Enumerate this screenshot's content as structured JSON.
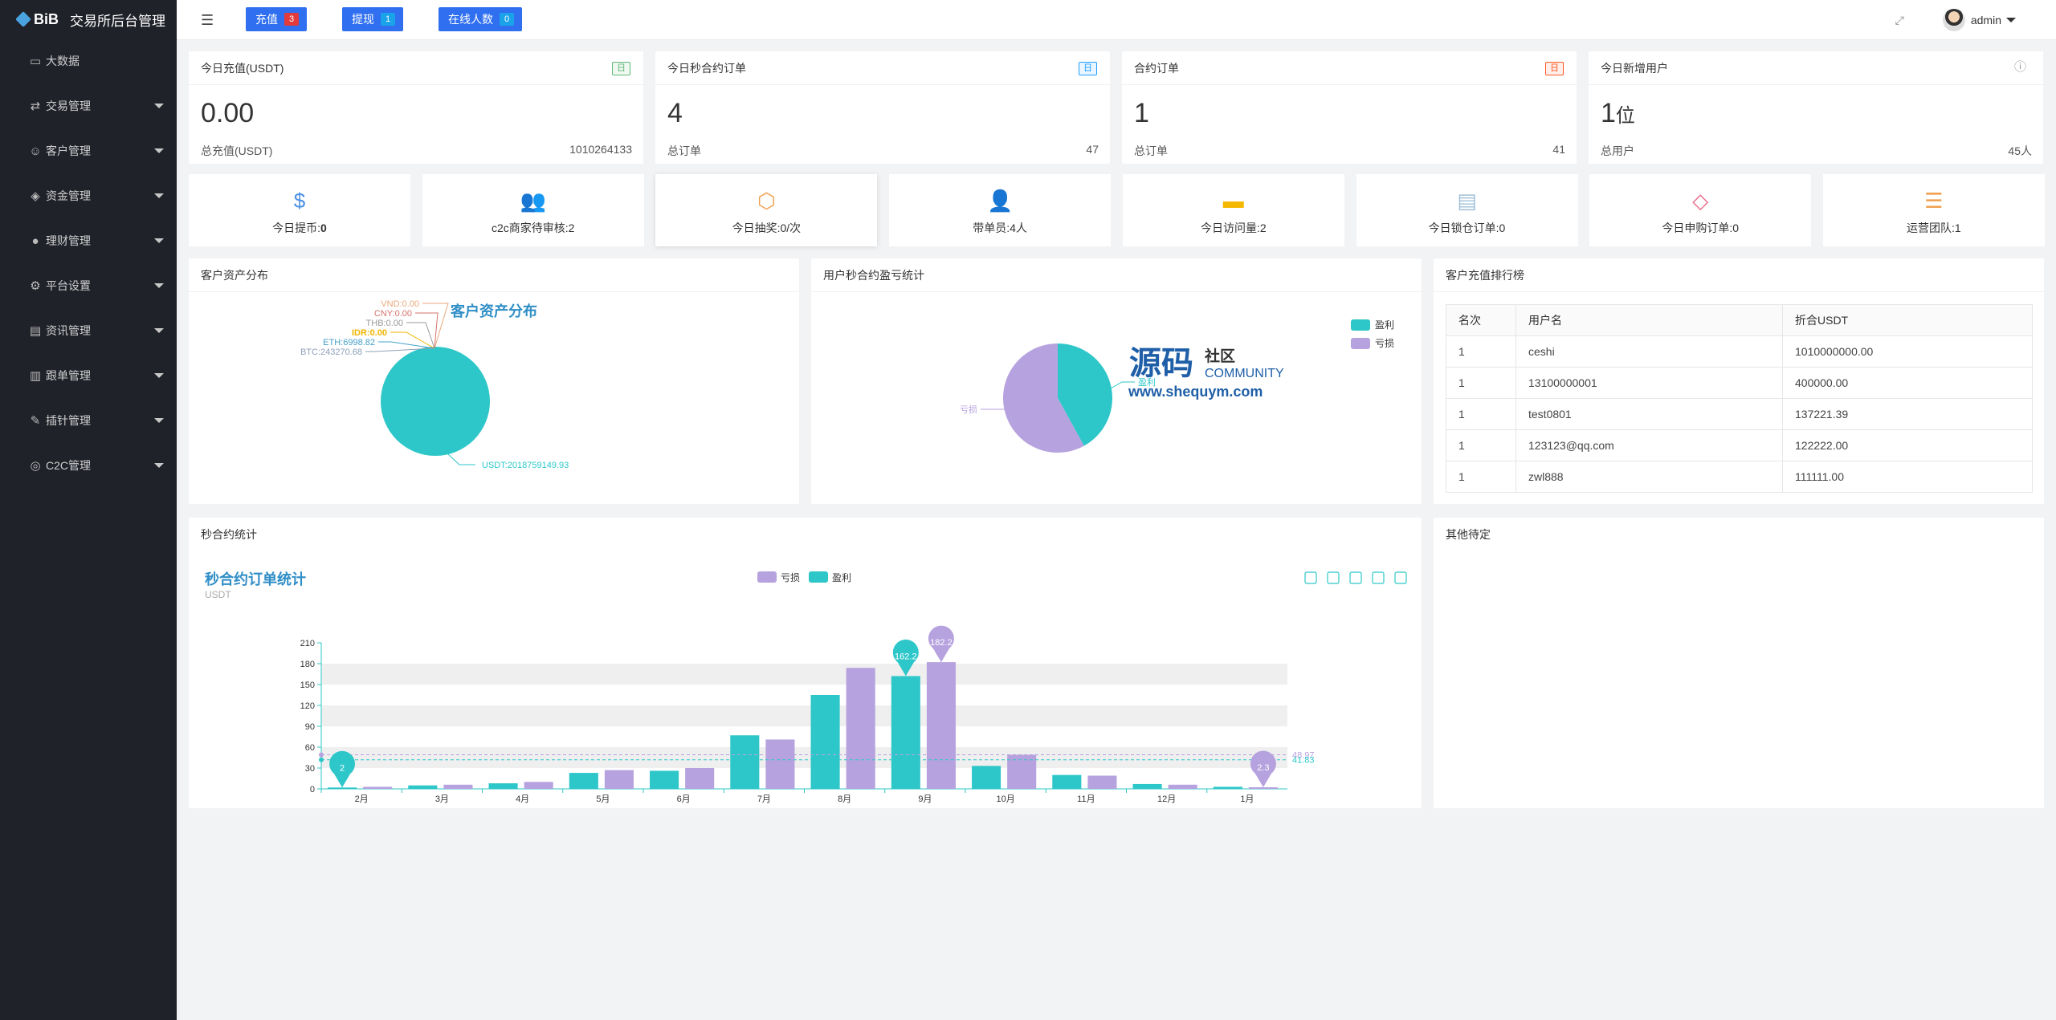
{
  "app": {
    "logo": "BiB",
    "title": "交易所后台管理"
  },
  "sidebar": {
    "items": [
      {
        "label": "大数据",
        "icon": "monitor-icon",
        "glyph": "▭",
        "expandable": false
      },
      {
        "label": "交易管理",
        "icon": "exchange-icon",
        "glyph": "⇄",
        "expandable": true
      },
      {
        "label": "客户管理",
        "icon": "users-icon",
        "glyph": "☺",
        "expandable": true
      },
      {
        "label": "资金管理",
        "icon": "wallet-icon",
        "glyph": "◈",
        "expandable": true
      },
      {
        "label": "理财管理",
        "icon": "piggy-bank-icon",
        "glyph": "●",
        "expandable": true
      },
      {
        "label": "平台设置",
        "icon": "gear-icon",
        "glyph": "⚙",
        "expandable": true
      },
      {
        "label": "资讯管理",
        "icon": "news-icon",
        "glyph": "▤",
        "expandable": true
      },
      {
        "label": "跟单管理",
        "icon": "document-icon",
        "glyph": "▥",
        "expandable": true
      },
      {
        "label": "插针管理",
        "icon": "wrench-icon",
        "glyph": "✎",
        "expandable": true
      },
      {
        "label": "C2C管理",
        "icon": "c2c-icon",
        "glyph": "◎",
        "expandable": true
      }
    ]
  },
  "topbar": {
    "buttons": [
      {
        "label": "充值",
        "badge": "3",
        "badge_color": "#e33b3b"
      },
      {
        "label": "提现",
        "badge": "1",
        "badge_color": "#1aa3e8"
      },
      {
        "label": "在线人数",
        "badge": "0",
        "badge_color": "#1aa3e8"
      }
    ],
    "user": "admin"
  },
  "stats": [
    {
      "title": "今日充值(USDT)",
      "tag": "日",
      "tag_color": "#5fb878",
      "value": "0.00",
      "unit": "",
      "foot_label": "总充值(USDT)",
      "foot_value": "1010264133"
    },
    {
      "title": "今日秒合约订单",
      "tag": "日",
      "tag_color": "#1e9fff",
      "value": "4",
      "unit": "",
      "foot_label": "总订单",
      "foot_value": "47"
    },
    {
      "title": "合约订单",
      "tag": "日",
      "tag_color": "#ff5722",
      "value": "1",
      "unit": "",
      "foot_label": "总订单",
      "foot_value": "41"
    },
    {
      "title": "今日新增用户",
      "tag": "ⓘ",
      "tag_color": "#999999",
      "value": "1",
      "unit": "位",
      "foot_label": "总用户",
      "foot_value": "45人"
    }
  ],
  "shortcuts": [
    {
      "label": "今日提币:",
      "value": "0",
      "icon": "dollar-icon",
      "glyph": "$",
      "color": "#4a90e2"
    },
    {
      "label": "c2c商家待审核:2",
      "value": "",
      "icon": "users-icon",
      "glyph": "👥",
      "color": "#5fb878"
    },
    {
      "label": "今日抽奖:0/次",
      "value": "",
      "icon": "box-icon",
      "glyph": "⬡",
      "color": "#f0a050"
    },
    {
      "label": "带单员:4人",
      "value": "",
      "icon": "user-icon",
      "glyph": "👤",
      "color": "#9b59b6"
    },
    {
      "label": "今日访问量:2",
      "value": "",
      "icon": "card-icon",
      "glyph": "▬",
      "color": "#f5b800"
    },
    {
      "label": "今日锁仓订单:0",
      "value": "",
      "icon": "file-icon",
      "glyph": "▤",
      "color": "#a0c0d8"
    },
    {
      "label": "今日申购订单:0",
      "value": "",
      "icon": "tag-icon",
      "glyph": "◇",
      "color": "#e86a8a"
    },
    {
      "label": "运营团队:1",
      "value": "",
      "icon": "sliders-icon",
      "glyph": "☰",
      "color": "#f0a050"
    }
  ],
  "panels": {
    "asset": "客户资产分布",
    "profit": "用户秒合约盈亏统计",
    "ranking": "客户充值排行榜",
    "second": "秒合约统计",
    "other": "其他待定"
  },
  "ranking": {
    "headers": [
      "名次",
      "用户名",
      "折合USDT"
    ],
    "rows": [
      [
        "1",
        "ceshi",
        "1010000000.00"
      ],
      [
        "1",
        "13100000001",
        "400000.00"
      ],
      [
        "1",
        "test0801",
        "137221.39"
      ],
      [
        "1",
        "123123@qq.com",
        "122222.00"
      ],
      [
        "1",
        "zwl888",
        "111111.00"
      ]
    ]
  },
  "watermark": {
    "big": "源码",
    "small": "社区",
    "en": "COMMUNITY",
    "url": "www.shequym.com"
  },
  "chart_data": [
    {
      "type": "pie",
      "title": "客户资产分布",
      "slices": [
        {
          "label": "VND:0.00",
          "value": 0,
          "color": "#e8a87c"
        },
        {
          "label": "CNY:0.00",
          "value": 0,
          "color": "#d4736b"
        },
        {
          "label": "THB:0.00",
          "value": 0,
          "color": "#999999"
        },
        {
          "label": "IDR:0.00",
          "value": 0,
          "color": "#f0b400"
        },
        {
          "label": "ETH:6998.82",
          "value": 6998.82,
          "color": "#46a0c8"
        },
        {
          "label": "BTC:243270.68",
          "value": 243270.68,
          "color": "#8ea0b8"
        },
        {
          "label": "USDT:2018759149.93",
          "value": 2018759149.93,
          "color": "#2ec7c9"
        }
      ]
    },
    {
      "type": "pie",
      "title": "",
      "legend": [
        "盈利",
        "亏损"
      ],
      "colors": [
        "#2ec7c9",
        "#b6a2de"
      ],
      "slices": [
        {
          "label": "盈利",
          "value": 42,
          "color": "#2ec7c9"
        },
        {
          "label": "亏损",
          "value": 58,
          "color": "#b6a2de"
        }
      ]
    },
    {
      "type": "bar",
      "title": "秒合约订单统计",
      "subtitle": "USDT",
      "legend": [
        "亏损",
        "盈利"
      ],
      "categories": [
        "2月",
        "3月",
        "4月",
        "5月",
        "6月",
        "7月",
        "8月",
        "9月",
        "10月",
        "11月",
        "12月",
        "1月"
      ],
      "ylim": [
        0,
        210
      ],
      "yticks": [
        0,
        30,
        60,
        90,
        120,
        150,
        180,
        210
      ],
      "series": [
        {
          "name": "盈利",
          "color": "#2ec7c9",
          "values": [
            2,
            5,
            8,
            23,
            26,
            77,
            135,
            162.2,
            33,
            20,
            7,
            3
          ]
        },
        {
          "name": "亏损",
          "color": "#b6a2de",
          "values": [
            3,
            6,
            10,
            27,
            30,
            71,
            174,
            182.2,
            49,
            19,
            6,
            2.3
          ]
        }
      ],
      "markpoints": [
        {
          "series": "盈利",
          "index": 0,
          "label": "2"
        },
        {
          "series": "盈利",
          "index": 7,
          "label": "162.2"
        },
        {
          "series": "亏损",
          "index": 7,
          "label": "182.2"
        },
        {
          "series": "亏损",
          "index": 11,
          "label": "2.3"
        }
      ],
      "marklines": [
        {
          "series": "亏损",
          "label": "48.97",
          "value": 48.97
        },
        {
          "series": "盈利",
          "label": "41.83",
          "value": 41.83
        }
      ]
    }
  ]
}
